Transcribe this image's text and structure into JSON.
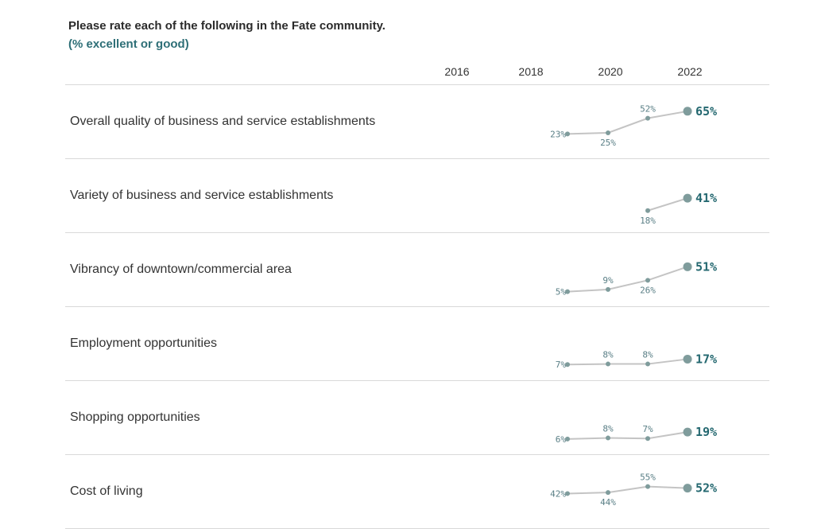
{
  "header": {
    "title": "Please rate each of the following in the Fate community.",
    "subtitle": "(% excellent or good)"
  },
  "chart_data": {
    "type": "line",
    "title": "Please rate each of the following in the Fate community.",
    "subtitle": "(% excellent or good)",
    "year_ticks": [
      "2016",
      "2018",
      "2020",
      "2022"
    ],
    "x": [
      2019,
      2020,
      2021,
      2022
    ],
    "ylim": [
      0,
      100
    ],
    "series": [
      {
        "name": "Overall quality of business and service establishments",
        "values": [
          23,
          25,
          52,
          65
        ],
        "labels": [
          "23%",
          "25%",
          "52%",
          "65%"
        ],
        "label_pos": [
          "left",
          "below",
          "above",
          "right"
        ]
      },
      {
        "name": "Variety of business and service establishments",
        "values": [
          null,
          null,
          18,
          41
        ],
        "labels": [
          "",
          "",
          "18%",
          "41%"
        ],
        "label_pos": [
          "",
          "",
          "below",
          "right"
        ]
      },
      {
        "name": "Vibrancy of downtown/commercial area",
        "values": [
          5,
          9,
          26,
          51
        ],
        "labels": [
          "5%",
          "9%",
          "26%",
          "51%"
        ],
        "label_pos": [
          "left",
          "above",
          "below",
          "right"
        ]
      },
      {
        "name": "Employment opportunities",
        "values": [
          7,
          8,
          8,
          17
        ],
        "labels": [
          "7%",
          "8%",
          "8%",
          "17%"
        ],
        "label_pos": [
          "left",
          "above",
          "above",
          "right"
        ]
      },
      {
        "name": "Shopping opportunities",
        "values": [
          6,
          8,
          7,
          19
        ],
        "labels": [
          "6%",
          "8%",
          "7%",
          "19%"
        ],
        "label_pos": [
          "left",
          "above",
          "above",
          "right"
        ]
      },
      {
        "name": "Cost of living",
        "values": [
          42,
          44,
          55,
          52
        ],
        "labels": [
          "42%",
          "44%",
          "55%",
          "52%"
        ],
        "label_pos": [
          "left",
          "below",
          "above",
          "right"
        ]
      }
    ]
  }
}
